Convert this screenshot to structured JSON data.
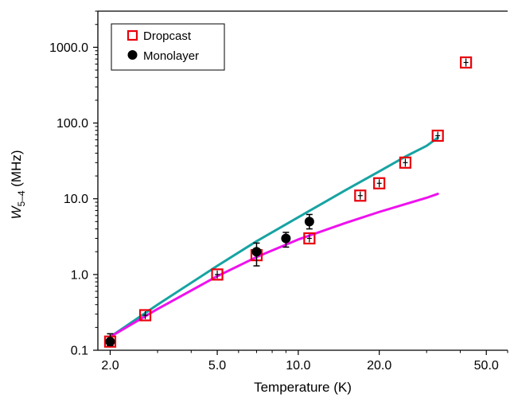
{
  "chart_data": {
    "type": "scatter",
    "title": "",
    "xlabel": "Temperature (K)",
    "ylabel": {
      "main": "W",
      "subscript": "5–4",
      "unit": " (MHz)"
    },
    "x_scale": "log",
    "y_scale": "log",
    "xlim": [
      1.8,
      60
    ],
    "ylim": [
      0.1,
      3000
    ],
    "x_ticks": [
      2.0,
      5.0,
      10.0,
      20.0,
      50.0
    ],
    "x_tick_labels": [
      "2.0",
      "5.0",
      "10.0",
      "20.0",
      "50.0"
    ],
    "y_ticks": [
      0.1,
      1.0,
      10.0,
      100.0,
      1000.0
    ],
    "y_tick_labels": [
      "0.1",
      "1.0",
      "10.0",
      "100.0",
      "1000.0"
    ],
    "legend_position": "top-left",
    "series": [
      {
        "name": "Dropcast",
        "marker": "open-square",
        "color": "#e8000b",
        "points": [
          {
            "x": 2.0,
            "y": 0.13
          },
          {
            "x": 2.7,
            "y": 0.29
          },
          {
            "x": 5.0,
            "y": 1.0
          },
          {
            "x": 7.0,
            "y": 1.8
          },
          {
            "x": 11.0,
            "y": 3.0
          },
          {
            "x": 17.0,
            "y": 11.0
          },
          {
            "x": 20.0,
            "y": 16.0
          },
          {
            "x": 25.0,
            "y": 30.0
          },
          {
            "x": 33.0,
            "y": 68.0
          },
          {
            "x": 42.0,
            "y": 630.0
          }
        ]
      },
      {
        "name": "Monolayer",
        "marker": "filled-circle",
        "color": "#000000",
        "points": [
          {
            "x": 2.0,
            "y": 0.13,
            "err_low": 0.115,
            "err_high": 0.165
          },
          {
            "x": 7.0,
            "y": 2.0,
            "err_low": 1.3,
            "err_high": 2.6
          },
          {
            "x": 9.0,
            "y": 3.0,
            "err_low": 2.3,
            "err_high": 3.6
          },
          {
            "x": 11.0,
            "y": 5.0,
            "err_low": 4.0,
            "err_high": 6.2
          }
        ]
      }
    ],
    "fit_curves": [
      {
        "color": "#17a3a3",
        "points": [
          [
            2.0,
            0.15
          ],
          [
            3.0,
            0.4
          ],
          [
            5.0,
            1.3
          ],
          [
            7.0,
            2.75
          ],
          [
            10.0,
            5.7
          ],
          [
            15.0,
            13.0
          ],
          [
            20.0,
            23.0
          ],
          [
            25.0,
            36.0
          ],
          [
            30.0,
            50.0
          ],
          [
            33.0,
            64.0
          ]
        ]
      },
      {
        "color": "#ee11ee",
        "points": [
          [
            2.0,
            0.15
          ],
          [
            3.0,
            0.35
          ],
          [
            5.0,
            0.95
          ],
          [
            7.0,
            1.7
          ],
          [
            10.0,
            2.9
          ],
          [
            15.0,
            4.8
          ],
          [
            20.0,
            6.7
          ],
          [
            25.0,
            8.5
          ],
          [
            30.0,
            10.3
          ],
          [
            33.0,
            11.6
          ]
        ]
      }
    ]
  }
}
